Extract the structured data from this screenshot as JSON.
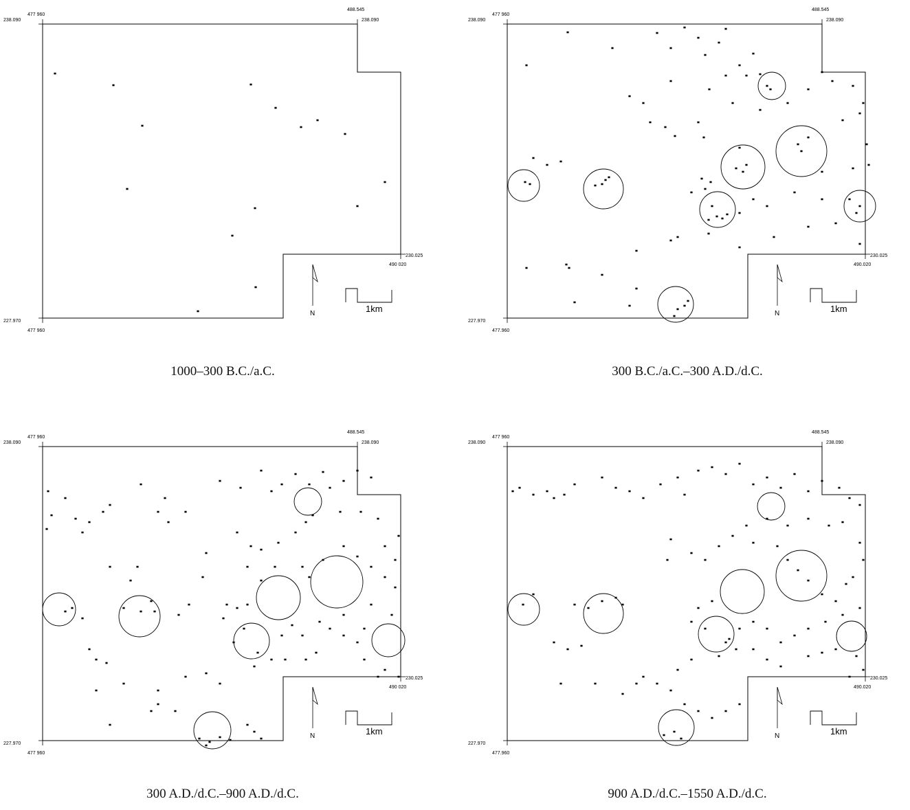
{
  "colors": {
    "ink": "#000000",
    "paper": "#ffffff"
  },
  "coordinate_labels": {
    "west_easting": "477 960",
    "west_easting_alt": "477.960",
    "northeast_easting": "488.545",
    "north_northing": "238.090",
    "south_northing": "227.970",
    "east_northing": "230.025",
    "east_easting": "490 020",
    "east_easting_alt": "490.020"
  },
  "north_arrow_label": "N",
  "scale_bar_label": "1km",
  "panels": [
    {
      "caption": "1000–300 B.C./a.C.",
      "sites": [
        [
          80,
          107
        ],
        [
          165,
          124
        ],
        [
          365,
          123
        ],
        [
          401,
          157
        ],
        [
          207,
          183
        ],
        [
          438,
          185
        ],
        [
          462,
          175
        ],
        [
          502,
          195
        ],
        [
          185,
          275
        ],
        [
          560,
          265
        ],
        [
          371,
          303
        ],
        [
          520,
          300
        ],
        [
          338,
          343
        ],
        [
          372,
          418
        ],
        [
          288,
          453
        ]
      ],
      "circles": []
    },
    {
      "caption": "300 B.C./a.C.–300 A.D./d.C.",
      "sites": [
        [
          90,
          95
        ],
        [
          150,
          47
        ],
        [
          215,
          70
        ],
        [
          280,
          48
        ],
        [
          300,
          70
        ],
        [
          320,
          40
        ],
        [
          340,
          55
        ],
        [
          350,
          80
        ],
        [
          370,
          62
        ],
        [
          380,
          42
        ],
        [
          400,
          95
        ],
        [
          410,
          110
        ],
        [
          430,
          108
        ],
        [
          440,
          125
        ],
        [
          445,
          130
        ],
        [
          420,
          78
        ],
        [
          380,
          110
        ],
        [
          356,
          130
        ],
        [
          300,
          118
        ],
        [
          240,
          140
        ],
        [
          260,
          150
        ],
        [
          270,
          178
        ],
        [
          292,
          185
        ],
        [
          306,
          198
        ],
        [
          340,
          178
        ],
        [
          348,
          200
        ],
        [
          390,
          150
        ],
        [
          430,
          160
        ],
        [
          470,
          150
        ],
        [
          500,
          130
        ],
        [
          520,
          105
        ],
        [
          535,
          118
        ],
        [
          565,
          125
        ],
        [
          580,
          150
        ],
        [
          575,
          165
        ],
        [
          550,
          175
        ],
        [
          500,
          200
        ],
        [
          485,
          210
        ],
        [
          490,
          220
        ],
        [
          400,
          215
        ],
        [
          410,
          240
        ],
        [
          395,
          245
        ],
        [
          405,
          250
        ],
        [
          345,
          260
        ],
        [
          350,
          275
        ],
        [
          358,
          265
        ],
        [
          330,
          280
        ],
        [
          200,
          268
        ],
        [
          205,
          262
        ],
        [
          210,
          258
        ],
        [
          190,
          270
        ],
        [
          88,
          265
        ],
        [
          95,
          268
        ],
        [
          360,
          300
        ],
        [
          367,
          315
        ],
        [
          375,
          318
        ],
        [
          382,
          312
        ],
        [
          355,
          320
        ],
        [
          420,
          290
        ],
        [
          400,
          310
        ],
        [
          440,
          300
        ],
        [
          480,
          280
        ],
        [
          520,
          290
        ],
        [
          560,
          290
        ],
        [
          575,
          300
        ],
        [
          570,
          310
        ],
        [
          520,
          250
        ],
        [
          565,
          245
        ],
        [
          585,
          210
        ],
        [
          588,
          240
        ],
        [
          140,
          235
        ],
        [
          100,
          230
        ],
        [
          120,
          240
        ],
        [
          300,
          350
        ],
        [
          310,
          345
        ],
        [
          355,
          340
        ],
        [
          400,
          360
        ],
        [
          450,
          345
        ],
        [
          500,
          330
        ],
        [
          540,
          325
        ],
        [
          575,
          355
        ],
        [
          148,
          385
        ],
        [
          152,
          390
        ],
        [
          90,
          390
        ],
        [
          160,
          440
        ],
        [
          240,
          445
        ],
        [
          250,
          420
        ],
        [
          310,
          450
        ],
        [
          325,
          438
        ],
        [
          320,
          445
        ],
        [
          305,
          460
        ],
        [
          200,
          400
        ],
        [
          250,
          365
        ]
      ],
      "circles": [
        [
          447,
          125,
          20
        ],
        [
          405,
          243,
          32
        ],
        [
          490,
          220,
          37
        ],
        [
          368,
          305,
          26
        ],
        [
          202,
          275,
          29
        ],
        [
          86,
          270,
          23
        ],
        [
          575,
          300,
          23
        ],
        [
          307,
          443,
          26
        ]
      ]
    },
    {
      "caption": "300 A.D./d.C.–900 A.D./d.C.",
      "sites": [
        [
          70,
          100
        ],
        [
          95,
          110
        ],
        [
          75,
          135
        ],
        [
          68,
          155
        ],
        [
          110,
          140
        ],
        [
          120,
          160
        ],
        [
          130,
          145
        ],
        [
          150,
          130
        ],
        [
          160,
          120
        ],
        [
          205,
          90
        ],
        [
          240,
          110
        ],
        [
          230,
          130
        ],
        [
          245,
          145
        ],
        [
          270,
          130
        ],
        [
          320,
          85
        ],
        [
          350,
          95
        ],
        [
          380,
          70
        ],
        [
          395,
          100
        ],
        [
          410,
          90
        ],
        [
          430,
          75
        ],
        [
          450,
          90
        ],
        [
          470,
          72
        ],
        [
          480,
          95
        ],
        [
          500,
          85
        ],
        [
          520,
          70
        ],
        [
          540,
          80
        ],
        [
          455,
          135
        ],
        [
          445,
          145
        ],
        [
          430,
          160
        ],
        [
          405,
          175
        ],
        [
          380,
          185
        ],
        [
          365,
          180
        ],
        [
          345,
          160
        ],
        [
          360,
          210
        ],
        [
          380,
          230
        ],
        [
          400,
          210
        ],
        [
          440,
          210
        ],
        [
          450,
          225
        ],
        [
          470,
          200
        ],
        [
          500,
          180
        ],
        [
          520,
          195
        ],
        [
          540,
          210
        ],
        [
          560,
          225
        ],
        [
          575,
          200
        ],
        [
          560,
          180
        ],
        [
          580,
          165
        ],
        [
          550,
          140
        ],
        [
          525,
          130
        ],
        [
          495,
          130
        ],
        [
          575,
          240
        ],
        [
          570,
          280
        ],
        [
          540,
          265
        ],
        [
          530,
          300
        ],
        [
          520,
          320
        ],
        [
          500,
          310
        ],
        [
          480,
          300
        ],
        [
          465,
          290
        ],
        [
          440,
          310
        ],
        [
          425,
          295
        ],
        [
          410,
          310
        ],
        [
          460,
          335
        ],
        [
          445,
          345
        ],
        [
          500,
          280
        ],
        [
          530,
          345
        ],
        [
          560,
          360
        ],
        [
          580,
          370
        ],
        [
          550,
          370
        ],
        [
          330,
          265
        ],
        [
          345,
          270
        ],
        [
          325,
          285
        ],
        [
          360,
          265
        ],
        [
          355,
          300
        ],
        [
          395,
          345
        ],
        [
          415,
          345
        ],
        [
          370,
          355
        ],
        [
          200,
          210
        ],
        [
          190,
          230
        ],
        [
          160,
          210
        ],
        [
          300,
          190
        ],
        [
          295,
          225
        ],
        [
          275,
          265
        ],
        [
          260,
          280
        ],
        [
          220,
          260
        ],
        [
          105,
          270
        ],
        [
          95,
          275
        ],
        [
          205,
          275
        ],
        [
          180,
          270
        ],
        [
          225,
          275
        ],
        [
          120,
          285
        ],
        [
          340,
          320
        ],
        [
          375,
          335
        ],
        [
          130,
          330
        ],
        [
          140,
          345
        ],
        [
          155,
          350
        ],
        [
          140,
          390
        ],
        [
          180,
          380
        ],
        [
          230,
          390
        ],
        [
          270,
          370
        ],
        [
          300,
          365
        ],
        [
          320,
          380
        ],
        [
          230,
          410
        ],
        [
          220,
          420
        ],
        [
          255,
          420
        ],
        [
          160,
          440
        ],
        [
          290,
          460
        ],
        [
          305,
          465
        ],
        [
          320,
          458
        ],
        [
          335,
          462
        ],
        [
          300,
          470
        ],
        [
          360,
          440
        ],
        [
          370,
          450
        ],
        [
          380,
          460
        ]
      ],
      "circles": [
        [
          448,
          115,
          20
        ],
        [
          405,
          255,
          32
        ],
        [
          490,
          232,
          38
        ],
        [
          366,
          318,
          26
        ],
        [
          203,
          282,
          30
        ],
        [
          86,
          272,
          24
        ],
        [
          565,
          317,
          24
        ],
        [
          309,
          448,
          27
        ]
      ]
    },
    {
      "caption": "900 A.D./d.C.–1550 A.D./d.C.",
      "sites": [
        [
          70,
          100
        ],
        [
          80,
          95
        ],
        [
          100,
          105
        ],
        [
          120,
          100
        ],
        [
          130,
          110
        ],
        [
          145,
          105
        ],
        [
          160,
          90
        ],
        [
          200,
          80
        ],
        [
          220,
          95
        ],
        [
          240,
          100
        ],
        [
          260,
          110
        ],
        [
          285,
          90
        ],
        [
          310,
          80
        ],
        [
          320,
          105
        ],
        [
          340,
          70
        ],
        [
          360,
          65
        ],
        [
          380,
          75
        ],
        [
          400,
          60
        ],
        [
          420,
          90
        ],
        [
          440,
          80
        ],
        [
          460,
          95
        ],
        [
          480,
          75
        ],
        [
          500,
          100
        ],
        [
          520,
          85
        ],
        [
          545,
          95
        ],
        [
          560,
          110
        ],
        [
          575,
          120
        ],
        [
          550,
          145
        ],
        [
          530,
          150
        ],
        [
          500,
          140
        ],
        [
          470,
          150
        ],
        [
          440,
          140
        ],
        [
          410,
          150
        ],
        [
          390,
          165
        ],
        [
          370,
          180
        ],
        [
          350,
          200
        ],
        [
          330,
          190
        ],
        [
          300,
          170
        ],
        [
          295,
          200
        ],
        [
          420,
          175
        ],
        [
          455,
          180
        ],
        [
          470,
          200
        ],
        [
          485,
          215
        ],
        [
          500,
          230
        ],
        [
          520,
          250
        ],
        [
          540,
          260
        ],
        [
          555,
          235
        ],
        [
          565,
          225
        ],
        [
          580,
          200
        ],
        [
          575,
          175
        ],
        [
          575,
          270
        ],
        [
          550,
          280
        ],
        [
          525,
          290
        ],
        [
          500,
          300
        ],
        [
          480,
          310
        ],
        [
          460,
          320
        ],
        [
          440,
          300
        ],
        [
          420,
          290
        ],
        [
          400,
          300
        ],
        [
          385,
          315
        ],
        [
          420,
          330
        ],
        [
          440,
          345
        ],
        [
          460,
          355
        ],
        [
          500,
          340
        ],
        [
          520,
          335
        ],
        [
          540,
          330
        ],
        [
          570,
          340
        ],
        [
          580,
          360
        ],
        [
          560,
          370
        ],
        [
          360,
          260
        ],
        [
          340,
          270
        ],
        [
          330,
          290
        ],
        [
          350,
          300
        ],
        [
          380,
          320
        ],
        [
          395,
          330
        ],
        [
          370,
          340
        ],
        [
          330,
          345
        ],
        [
          310,
          360
        ],
        [
          280,
          380
        ],
        [
          260,
          370
        ],
        [
          200,
          260
        ],
        [
          180,
          270
        ],
        [
          160,
          265
        ],
        [
          220,
          255
        ],
        [
          230,
          265
        ],
        [
          100,
          250
        ],
        [
          85,
          265
        ],
        [
          130,
          320
        ],
        [
          150,
          330
        ],
        [
          170,
          325
        ],
        [
          140,
          380
        ],
        [
          190,
          380
        ],
        [
          230,
          395
        ],
        [
          250,
          380
        ],
        [
          300,
          390
        ],
        [
          320,
          410
        ],
        [
          340,
          420
        ],
        [
          360,
          430
        ],
        [
          380,
          420
        ],
        [
          400,
          410
        ],
        [
          290,
          455
        ],
        [
          305,
          450
        ],
        [
          315,
          460
        ]
      ],
      "circles": [
        [
          446,
          122,
          20
        ],
        [
          404,
          246,
          32
        ],
        [
          490,
          223,
          37
        ],
        [
          366,
          308,
          26
        ],
        [
          202,
          278,
          29
        ],
        [
          86,
          272,
          23
        ],
        [
          563,
          311,
          22
        ],
        [
          308,
          444,
          26
        ]
      ]
    }
  ]
}
